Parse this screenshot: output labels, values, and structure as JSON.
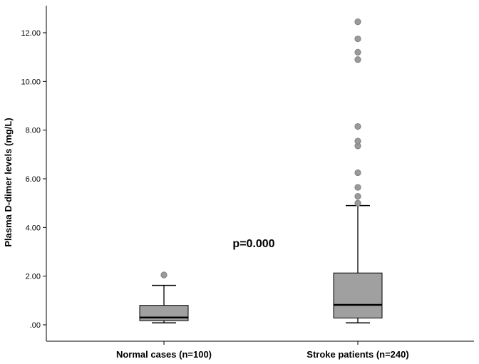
{
  "chart_data": {
    "type": "boxplot",
    "title": "",
    "xlabel": "",
    "ylabel": "Plasma D-dimer levels (mg/L)",
    "ylim": [
      -0.3,
      12.95
    ],
    "yticks": [
      0,
      2,
      4,
      6,
      8,
      10,
      12
    ],
    "ytick_labels": [
      ".00",
      "2.00",
      "4.00",
      "6.00",
      "8.00",
      "10.00",
      "12.00"
    ],
    "grid": false,
    "categories": [
      "Normal cases (n=100)",
      "Stroke patients (n=240)"
    ],
    "boxes": [
      {
        "whisker_low": 0.08,
        "q1": 0.17,
        "median": 0.3,
        "q3": 0.8,
        "whisker_high": 1.62,
        "outliers": [
          2.05
        ]
      },
      {
        "whisker_low": 0.08,
        "q1": 0.28,
        "median": 0.82,
        "q3": 2.13,
        "whisker_high": 4.9,
        "outliers": [
          5.0,
          5.28,
          5.65,
          6.25,
          7.35,
          7.55,
          8.15,
          10.9,
          11.2,
          11.75,
          12.45
        ]
      }
    ],
    "annotation": "p=0.000",
    "box_color": "#a0a0a0",
    "outlier_color": "#9a9a9a"
  }
}
